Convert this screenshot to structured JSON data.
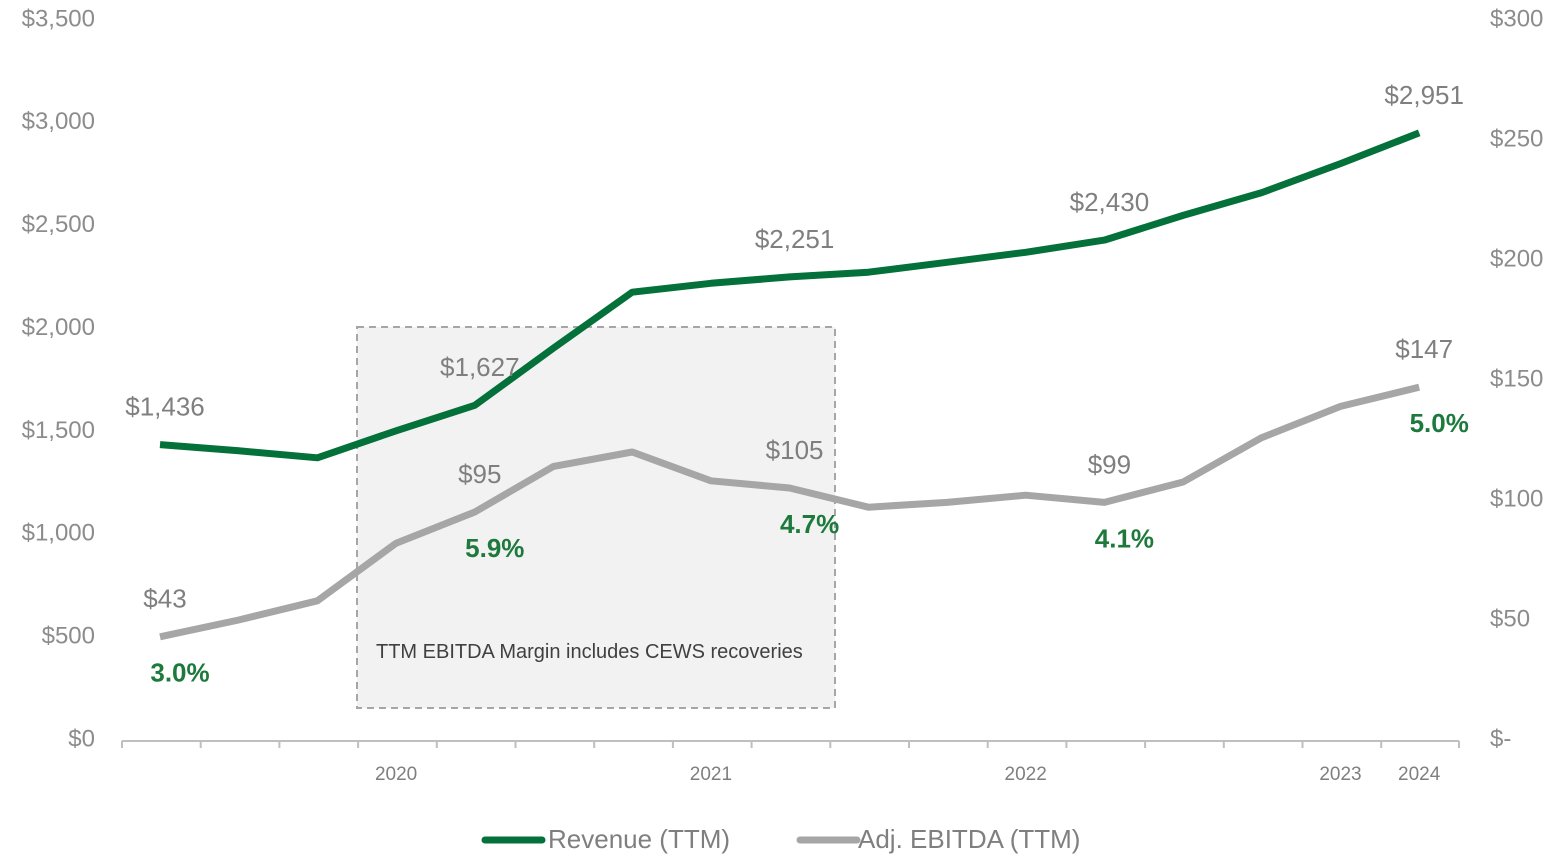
{
  "chart_data": {
    "type": "line",
    "categories": [
      null,
      null,
      null,
      "2020",
      null,
      null,
      null,
      "2021",
      null,
      null,
      null,
      "2022",
      null,
      null,
      null,
      "2023",
      "2024"
    ],
    "series": [
      {
        "name": "Revenue (TTM)",
        "color": "#04703a",
        "axis": "y",
        "values": [
          1436,
          1406,
          1372,
          1503,
          1627,
          1905,
          2177,
          2220,
          2251,
          2274,
          2322,
          2371,
          2430,
          2550,
          2661,
          2802,
          2951
        ],
        "value_labels": [
          "$1,436",
          null,
          null,
          null,
          "$1,627",
          null,
          null,
          null,
          "$2,251",
          null,
          null,
          null,
          "$2,430",
          null,
          null,
          null,
          "$2,951"
        ]
      },
      {
        "name": "Adj. EBITDA (TTM)",
        "color": "#a6a6a6",
        "axis": "y2",
        "values": [
          43,
          50,
          58,
          82,
          95,
          114,
          120,
          108,
          105,
          97,
          99,
          102,
          99,
          107.5,
          126,
          139,
          147
        ],
        "value_labels": [
          "$43",
          null,
          null,
          null,
          "$95",
          null,
          null,
          null,
          "$105",
          null,
          null,
          null,
          "$99",
          null,
          null,
          null,
          "$147"
        ]
      }
    ],
    "margin_labels": [
      "3.0%",
      null,
      null,
      null,
      "5.9%",
      null,
      null,
      null,
      "4.7%",
      null,
      null,
      null,
      "4.1%",
      null,
      null,
      null,
      "5.0%"
    ],
    "annotation": "TTM EBITDA Margin includes CEWS recoveries",
    "ylim": [
      0,
      3500
    ],
    "yticks": [
      {
        "value": 0,
        "label": "$0"
      },
      {
        "value": 500,
        "label": "$500"
      },
      {
        "value": 1000,
        "label": "$1,000"
      },
      {
        "value": 1500,
        "label": "$1,500"
      },
      {
        "value": 2000,
        "label": "$2,000"
      },
      {
        "value": 2500,
        "label": "$2,500"
      },
      {
        "value": 3000,
        "label": "$3,000"
      },
      {
        "value": 3500,
        "label": "$3,500"
      }
    ],
    "y2lim": [
      0,
      300
    ],
    "y2ticks": [
      {
        "value": 0,
        "label": "$-"
      },
      {
        "value": 50,
        "label": "$50"
      },
      {
        "value": 100,
        "label": "$100"
      },
      {
        "value": 150,
        "label": "$150"
      },
      {
        "value": 200,
        "label": "$200"
      },
      {
        "value": 250,
        "label": "$250"
      },
      {
        "value": 300,
        "label": "$300"
      }
    ],
    "legend": "bottom"
  }
}
